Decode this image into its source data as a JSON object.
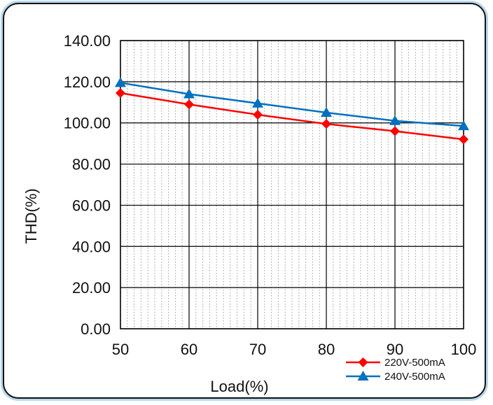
{
  "chart_data": {
    "type": "line",
    "title": "",
    "xlabel": "Load(%)",
    "ylabel": "THD(%)",
    "x": [
      50,
      60,
      70,
      80,
      90,
      100
    ],
    "xlim": [
      50,
      100
    ],
    "ylim": [
      0,
      140
    ],
    "x_ticks": [
      "50",
      "60",
      "70",
      "80",
      "90",
      "100"
    ],
    "y_ticks": [
      "0.00",
      "20.00",
      "40.00",
      "60.00",
      "80.00",
      "100.00",
      "120.00",
      "140.00"
    ],
    "grid": true,
    "minor_grid_x": true,
    "legend_position": "bottom-right",
    "series": [
      {
        "name": "220V-500mA",
        "color": "#ff0000",
        "marker": "diamond",
        "values": [
          114.5,
          109,
          104,
          99.5,
          96,
          92
        ]
      },
      {
        "name": "240V-500mA",
        "color": "#0070c0",
        "marker": "triangle",
        "values": [
          119.5,
          114,
          109.5,
          105,
          101,
          98.5
        ]
      }
    ]
  }
}
